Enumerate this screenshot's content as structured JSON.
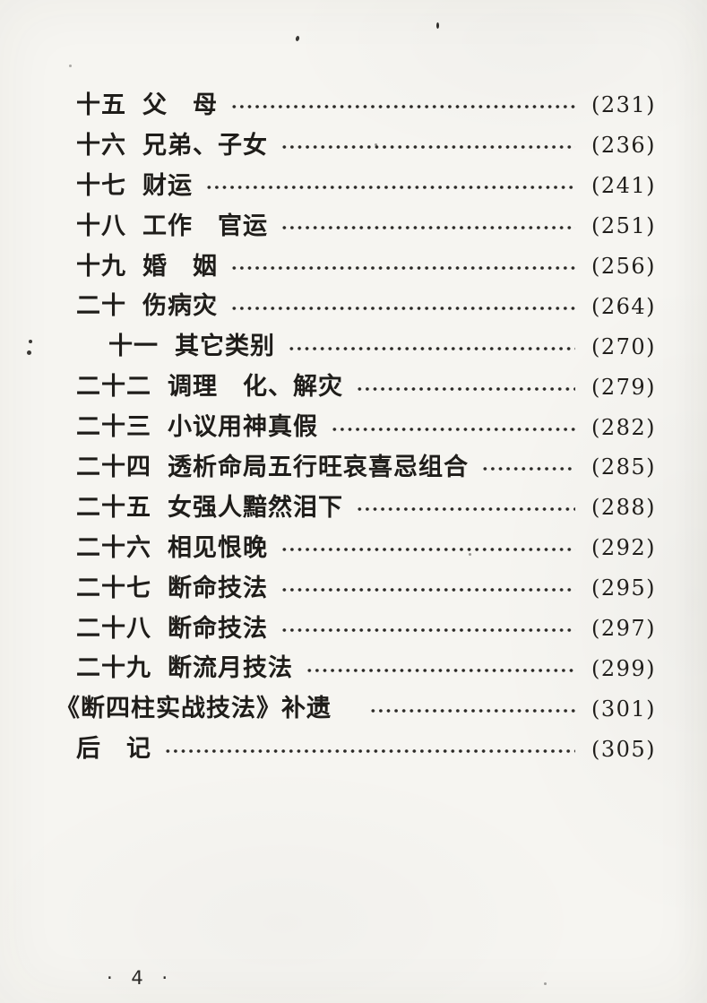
{
  "toc": {
    "entries": [
      {
        "label": "十五",
        "title": "父　母",
        "page": "(231)",
        "variant": ""
      },
      {
        "label": "十六",
        "title": "兄弟、子女",
        "page": "(236)",
        "variant": ""
      },
      {
        "label": "十七",
        "title": "财运",
        "page": "(241)",
        "variant": ""
      },
      {
        "label": "十八",
        "title": "工作　官运",
        "page": "(251)",
        "variant": ""
      },
      {
        "label": "十九",
        "title": "婚　姻",
        "page": "(256)",
        "variant": ""
      },
      {
        "label": "二十",
        "title": "伤病灾",
        "page": "(264)",
        "variant": ""
      },
      {
        "label": "十一",
        "title": "其它类别",
        "page": "(270)",
        "variant": "indent"
      },
      {
        "label": "二十二",
        "title": "调理　化、解灾",
        "page": "(279)",
        "variant": ""
      },
      {
        "label": "二十三",
        "title": "小议用神真假",
        "page": "(282)",
        "variant": ""
      },
      {
        "label": "二十四",
        "title": "透析命局五行旺哀喜忌组合",
        "page": "(285)",
        "variant": ""
      },
      {
        "label": "二十五",
        "title": "女强人黯然泪下",
        "page": "(288)",
        "variant": ""
      },
      {
        "label": "二十六",
        "title": "相见恨晚",
        "page": "(292)",
        "variant": ""
      },
      {
        "label": "二十七",
        "title": "断命技法",
        "page": "(295)",
        "variant": ""
      },
      {
        "label": "二十八",
        "title": "断命技法",
        "page": "(297)",
        "variant": ""
      },
      {
        "label": "二十九",
        "title": "断流月技法",
        "page": "(299)",
        "variant": ""
      },
      {
        "label": "",
        "title": "《断四柱实战技法》补遗　",
        "page": "(301)",
        "variant": "outdent"
      },
      {
        "label": "",
        "title": "后　记",
        "page": "(305)",
        "variant": ""
      }
    ]
  },
  "footer": {
    "page_number": "· 4 ·"
  },
  "colors": {
    "paper": "#f6f5f1",
    "ink": "#1f1d1a",
    "dot_leader": "#2b2926"
  }
}
